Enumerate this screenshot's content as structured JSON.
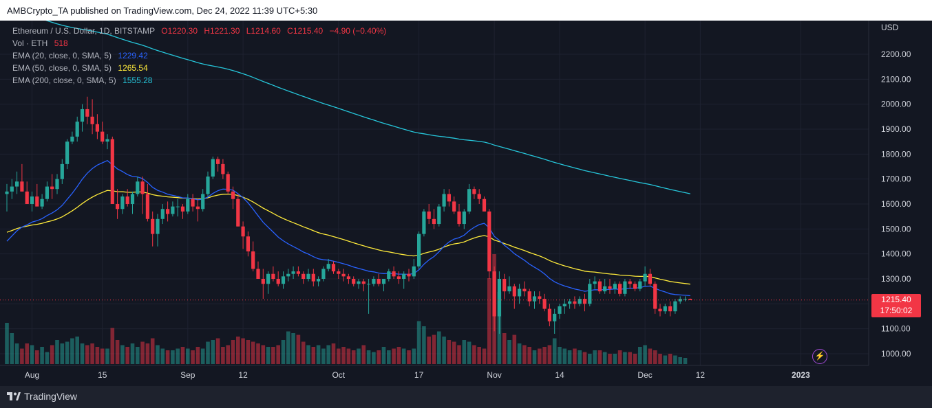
{
  "header": {
    "publisher": "AMBCrypto_TA published on TradingView.com, Dec 24, 2022 11:39 UTC+5:30"
  },
  "legend": {
    "symbol": "Ethereum / U.S. Dollar, 1D, BITSTAMP",
    "open": "O1220.30",
    "high": "H1221.30",
    "low": "L1214.60",
    "close": "C1215.40",
    "change": "−4.90 (−0.40%)",
    "vol_label": "Vol · ETH",
    "vol_value": "518",
    "ema20_label": "EMA (20, close, 0, SMA, 5)",
    "ema20_value": "1229.42",
    "ema50_label": "EMA (50, close, 0, SMA, 5)",
    "ema50_value": "1265.54",
    "ema200_label": "EMA (200, close, 0, SMA, 5)",
    "ema200_value": "1555.28"
  },
  "price_tag": {
    "price": "1215.40",
    "countdown": "17:50:02"
  },
  "footer": {
    "brand": "TradingView"
  },
  "colors": {
    "up": "#26a69a",
    "down": "#f23645",
    "ema20": "#2962ff",
    "ema50": "#ffeb3b",
    "ema200": "#26c6da"
  },
  "chart_data": {
    "type": "candlestick",
    "currency": "USD",
    "ylim": [
      1000,
      2200
    ],
    "yticks": [
      "2200.00",
      "2100.00",
      "2000.00",
      "1900.00",
      "1800.00",
      "1700.00",
      "1600.00",
      "1500.00",
      "1400.00",
      "1300.00",
      "1200.00",
      "1100.00",
      "1000.00"
    ],
    "xticks": [
      {
        "label": "Aug",
        "day": 5
      },
      {
        "label": "15",
        "day": 19
      },
      {
        "label": "Sep",
        "day": 36
      },
      {
        "label": "12",
        "day": 47
      },
      {
        "label": "Oct",
        "day": 66
      },
      {
        "label": "17",
        "day": 82
      },
      {
        "label": "Nov",
        "day": 97
      },
      {
        "label": "14",
        "day": 110
      },
      {
        "label": "Dec",
        "day": 127
      },
      {
        "label": "12",
        "day": 138
      },
      {
        "label": "2023",
        "day": 158
      }
    ],
    "candles": [
      [
        1640,
        1680,
        1570,
        1650
      ],
      [
        1650,
        1700,
        1620,
        1670
      ],
      [
        1670,
        1730,
        1640,
        1690
      ],
      [
        1690,
        1760,
        1650,
        1650
      ],
      [
        1650,
        1690,
        1600,
        1600
      ],
      [
        1600,
        1650,
        1570,
        1630
      ],
      [
        1630,
        1680,
        1590,
        1590
      ],
      [
        1590,
        1640,
        1580,
        1620
      ],
      [
        1620,
        1690,
        1610,
        1670
      ],
      [
        1670,
        1720,
        1620,
        1660
      ],
      [
        1660,
        1720,
        1640,
        1700
      ],
      [
        1700,
        1780,
        1680,
        1760
      ],
      [
        1760,
        1860,
        1740,
        1850
      ],
      [
        1850,
        1890,
        1840,
        1870
      ],
      [
        1870,
        1950,
        1850,
        1930
      ],
      [
        1930,
        2000,
        1890,
        1980
      ],
      [
        1980,
        2030,
        1920,
        1950
      ],
      [
        1950,
        2020,
        1880,
        1920
      ],
      [
        1920,
        1960,
        1860,
        1890
      ],
      [
        1890,
        1930,
        1840,
        1850
      ],
      [
        1850,
        1880,
        1820,
        1860
      ],
      [
        1860,
        1870,
        1600,
        1600
      ],
      [
        1600,
        1660,
        1540,
        1580
      ],
      [
        1580,
        1640,
        1560,
        1630
      ],
      [
        1630,
        1660,
        1590,
        1600
      ],
      [
        1600,
        1650,
        1560,
        1640
      ],
      [
        1640,
        1710,
        1630,
        1690
      ],
      [
        1690,
        1710,
        1560,
        1640
      ],
      [
        1640,
        1680,
        1530,
        1540
      ],
      [
        1540,
        1570,
        1430,
        1480
      ],
      [
        1480,
        1560,
        1430,
        1540
      ],
      [
        1540,
        1600,
        1520,
        1580
      ],
      [
        1580,
        1610,
        1530,
        1560
      ],
      [
        1560,
        1610,
        1550,
        1590
      ],
      [
        1590,
        1620,
        1550,
        1590
      ],
      [
        1590,
        1600,
        1540,
        1570
      ],
      [
        1570,
        1640,
        1560,
        1620
      ],
      [
        1620,
        1640,
        1570,
        1590
      ],
      [
        1590,
        1620,
        1530,
        1580
      ],
      [
        1580,
        1660,
        1570,
        1640
      ],
      [
        1640,
        1730,
        1630,
        1710
      ],
      [
        1710,
        1790,
        1700,
        1780
      ],
      [
        1780,
        1790,
        1730,
        1760
      ],
      [
        1760,
        1780,
        1700,
        1720
      ],
      [
        1720,
        1730,
        1640,
        1650
      ],
      [
        1650,
        1670,
        1580,
        1620
      ],
      [
        1620,
        1640,
        1510,
        1510
      ],
      [
        1510,
        1530,
        1420,
        1470
      ],
      [
        1470,
        1490,
        1390,
        1410
      ],
      [
        1410,
        1450,
        1330,
        1340
      ],
      [
        1340,
        1370,
        1300,
        1300
      ],
      [
        1300,
        1340,
        1220,
        1280
      ],
      [
        1280,
        1330,
        1240,
        1320
      ],
      [
        1320,
        1350,
        1290,
        1300
      ],
      [
        1300,
        1330,
        1270,
        1280
      ],
      [
        1280,
        1330,
        1260,
        1310
      ],
      [
        1310,
        1340,
        1290,
        1320
      ],
      [
        1320,
        1350,
        1300,
        1330
      ],
      [
        1330,
        1350,
        1310,
        1320
      ],
      [
        1320,
        1330,
        1280,
        1300
      ],
      [
        1300,
        1340,
        1290,
        1320
      ],
      [
        1320,
        1340,
        1270,
        1290
      ],
      [
        1290,
        1310,
        1270,
        1300
      ],
      [
        1300,
        1350,
        1290,
        1340
      ],
      [
        1340,
        1380,
        1330,
        1360
      ],
      [
        1360,
        1370,
        1320,
        1330
      ],
      [
        1330,
        1340,
        1300,
        1320
      ],
      [
        1320,
        1340,
        1290,
        1310
      ],
      [
        1310,
        1320,
        1280,
        1300
      ],
      [
        1300,
        1310,
        1270,
        1280
      ],
      [
        1280,
        1300,
        1260,
        1290
      ],
      [
        1290,
        1300,
        1250,
        1280
      ],
      [
        1280,
        1300,
        1160,
        1280
      ],
      [
        1280,
        1310,
        1270,
        1300
      ],
      [
        1300,
        1320,
        1270,
        1280
      ],
      [
        1280,
        1300,
        1250,
        1300
      ],
      [
        1300,
        1340,
        1290,
        1330
      ],
      [
        1330,
        1350,
        1300,
        1310
      ],
      [
        1310,
        1330,
        1280,
        1300
      ],
      [
        1300,
        1330,
        1260,
        1320
      ],
      [
        1320,
        1340,
        1290,
        1310
      ],
      [
        1310,
        1380,
        1300,
        1350
      ],
      [
        1350,
        1490,
        1340,
        1480
      ],
      [
        1480,
        1580,
        1470,
        1570
      ],
      [
        1570,
        1600,
        1520,
        1540
      ],
      [
        1540,
        1580,
        1500,
        1520
      ],
      [
        1520,
        1600,
        1510,
        1590
      ],
      [
        1590,
        1660,
        1570,
        1640
      ],
      [
        1640,
        1660,
        1590,
        1610
      ],
      [
        1610,
        1630,
        1560,
        1570
      ],
      [
        1570,
        1600,
        1510,
        1520
      ],
      [
        1520,
        1580,
        1500,
        1570
      ],
      [
        1570,
        1680,
        1560,
        1660
      ],
      [
        1660,
        1670,
        1620,
        1640
      ],
      [
        1640,
        1660,
        1600,
        1620
      ],
      [
        1620,
        1630,
        1570,
        1570
      ],
      [
        1570,
        1580,
        1300,
        1330
      ],
      [
        1330,
        1350,
        1090,
        1150
      ],
      [
        1150,
        1330,
        1080,
        1300
      ],
      [
        1300,
        1320,
        1220,
        1250
      ],
      [
        1250,
        1310,
        1240,
        1270
      ],
      [
        1270,
        1280,
        1180,
        1230
      ],
      [
        1230,
        1280,
        1200,
        1260
      ],
      [
        1260,
        1290,
        1230,
        1250
      ],
      [
        1250,
        1260,
        1190,
        1210
      ],
      [
        1210,
        1250,
        1180,
        1230
      ],
      [
        1230,
        1250,
        1200,
        1220
      ],
      [
        1220,
        1240,
        1170,
        1180
      ],
      [
        1180,
        1200,
        1110,
        1130
      ],
      [
        1130,
        1180,
        1080,
        1160
      ],
      [
        1160,
        1200,
        1140,
        1190
      ],
      [
        1190,
        1220,
        1160,
        1200
      ],
      [
        1200,
        1220,
        1180,
        1210
      ],
      [
        1210,
        1230,
        1180,
        1200
      ],
      [
        1200,
        1230,
        1190,
        1220
      ],
      [
        1220,
        1240,
        1170,
        1200
      ],
      [
        1200,
        1300,
        1190,
        1280
      ],
      [
        1280,
        1310,
        1260,
        1290
      ],
      [
        1290,
        1300,
        1240,
        1250
      ],
      [
        1250,
        1300,
        1240,
        1270
      ],
      [
        1270,
        1300,
        1240,
        1260
      ],
      [
        1260,
        1290,
        1240,
        1280
      ],
      [
        1280,
        1290,
        1230,
        1240
      ],
      [
        1240,
        1300,
        1230,
        1290
      ],
      [
        1290,
        1300,
        1260,
        1280
      ],
      [
        1280,
        1290,
        1250,
        1260
      ],
      [
        1260,
        1300,
        1250,
        1290
      ],
      [
        1290,
        1350,
        1270,
        1320
      ],
      [
        1320,
        1340,
        1270,
        1280
      ],
      [
        1280,
        1290,
        1160,
        1180
      ],
      [
        1180,
        1200,
        1150,
        1170
      ],
      [
        1170,
        1200,
        1160,
        1190
      ],
      [
        1190,
        1210,
        1150,
        1170
      ],
      [
        1170,
        1220,
        1160,
        1210
      ],
      [
        1210,
        1230,
        1200,
        1220
      ],
      [
        1220,
        1230,
        1210,
        1220
      ],
      [
        1220,
        1221.3,
        1214.6,
        1215.4
      ]
    ],
    "volume": [
      120,
      90,
      60,
      45,
      60,
      55,
      40,
      50,
      35,
      55,
      70,
      60,
      65,
      75,
      80,
      60,
      55,
      60,
      50,
      45,
      45,
      105,
      70,
      55,
      50,
      60,
      50,
      65,
      60,
      75,
      55,
      45,
      40,
      40,
      45,
      50,
      45,
      40,
      50,
      45,
      65,
      70,
      75,
      50,
      55,
      70,
      80,
      75,
      70,
      65,
      60,
      55,
      50,
      50,
      55,
      70,
      95,
      90,
      85,
      65,
      55,
      50,
      55,
      45,
      55,
      60,
      45,
      50,
      45,
      40,
      45,
      55,
      40,
      35,
      40,
      50,
      40,
      45,
      50,
      45,
      40,
      45,
      125,
      110,
      80,
      85,
      95,
      80,
      70,
      65,
      55,
      70,
      65,
      55,
      50,
      45,
      250,
      320,
      210,
      90,
      70,
      85,
      60,
      55,
      50,
      40,
      45,
      50,
      55,
      75,
      50,
      45,
      40,
      45,
      40,
      35,
      30,
      40,
      40,
      35,
      30,
      30,
      40,
      35,
      35,
      30,
      50,
      55,
      45,
      40,
      30,
      25,
      30,
      25,
      20,
      18
    ]
  }
}
